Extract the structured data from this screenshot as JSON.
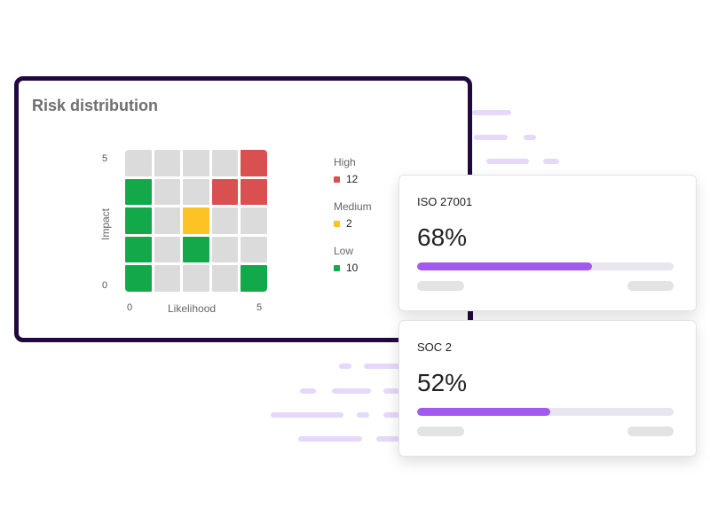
{
  "risk": {
    "title": "Risk distribution",
    "y_axis": {
      "label": "Impact",
      "min": "0",
      "max": "5"
    },
    "x_axis": {
      "label": "Likelihood",
      "min": "0",
      "max": "5"
    },
    "matrix": [
      [
        "none",
        "none",
        "none",
        "none",
        "high"
      ],
      [
        "low",
        "none",
        "none",
        "high",
        "high"
      ],
      [
        "low",
        "none",
        "medium",
        "none",
        "none"
      ],
      [
        "low",
        "none",
        "low",
        "none",
        "none"
      ],
      [
        "low",
        "none",
        "none",
        "none",
        "low"
      ]
    ],
    "legend": [
      {
        "name": "High",
        "count": "12",
        "color": "#d8504f"
      },
      {
        "name": "Medium",
        "count": "2",
        "color": "#fdc224"
      },
      {
        "name": "Low",
        "count": "10",
        "color": "#13a94a"
      }
    ]
  },
  "certifications": [
    {
      "name": "ISO 27001",
      "percent_label": "68%",
      "progress": 0.68
    },
    {
      "name": "SOC 2",
      "percent_label": "52%",
      "progress": 0.52
    }
  ],
  "colors": {
    "frame": "#21093f",
    "accent": "#a259ef",
    "track": "#e8e5f0",
    "empty_cell": "#dcdbdc",
    "streak": "#e6d8fb"
  }
}
